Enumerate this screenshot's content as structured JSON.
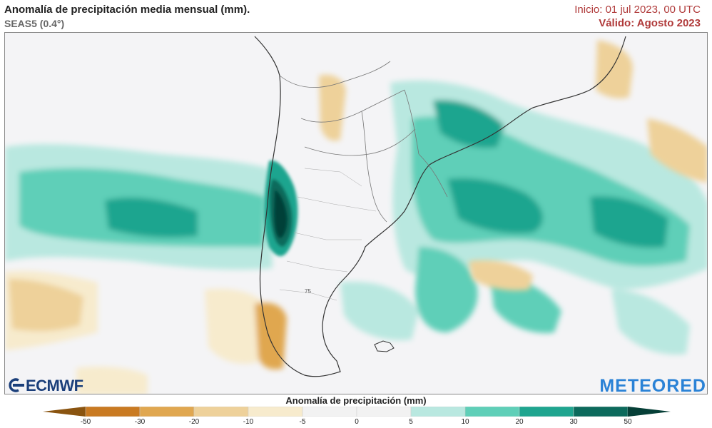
{
  "header": {
    "title": "Anomalía de precipitación media mensual (mm).",
    "model": "SEAS5 (0.4°)",
    "init": "Inicio: 01 jul 2023, 00 UTC",
    "valid": "Válido: Agosto 2023"
  },
  "map": {
    "region": "South America (southern cone)",
    "label_75": "75"
  },
  "logos": {
    "left": "ECMWF",
    "right": "METEORED"
  },
  "legend": {
    "title": "Anomalía de precipitación (mm)",
    "ticks": [
      "-50",
      "-30",
      "-20",
      "-10",
      "-5",
      "0",
      "5",
      "10",
      "20",
      "30",
      "50"
    ],
    "colors": [
      "#8a5410",
      "#c97a22",
      "#e0a750",
      "#eed19a",
      "#f7ebcd",
      "#f2f2f2",
      "#f2f2f2",
      "#b9e8e0",
      "#5fcfb8",
      "#1fa58f",
      "#0c6a5c",
      "#063f37"
    ]
  }
}
